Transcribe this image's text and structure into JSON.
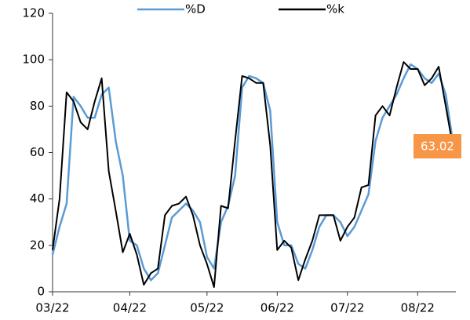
{
  "chart_data": {
    "type": "line",
    "categories": [
      "03/22",
      null,
      null,
      null,
      null,
      null,
      null,
      null,
      null,
      null,
      null,
      "04/22",
      null,
      null,
      null,
      null,
      null,
      null,
      null,
      null,
      null,
      null,
      "05/22",
      null,
      null,
      null,
      null,
      null,
      null,
      null,
      null,
      null,
      "06/22",
      null,
      null,
      null,
      null,
      null,
      null,
      null,
      null,
      null,
      "07/22",
      null,
      null,
      null,
      null,
      null,
      null,
      null,
      null,
      null,
      "08/22",
      null,
      null,
      null,
      null,
      null
    ],
    "series": [
      {
        "name": "%D",
        "color": "#5b9bd5",
        "values": [
          16,
          28,
          38,
          84,
          80,
          75,
          75,
          85,
          88,
          65,
          50,
          22,
          20,
          10,
          5,
          8,
          20,
          32,
          35,
          38,
          35,
          30,
          15,
          10,
          30,
          37,
          50,
          88,
          93,
          92,
          90,
          78,
          30,
          20,
          20,
          12,
          10,
          18,
          28,
          33,
          33,
          30,
          24,
          28,
          35,
          42,
          65,
          75,
          80,
          85,
          92,
          98,
          96,
          92,
          90,
          94,
          85,
          65
        ]
      },
      {
        "name": "%k",
        "color": "#000000",
        "values": [
          18,
          40,
          86,
          82,
          73,
          70,
          82,
          92,
          52,
          35,
          17,
          25,
          16,
          3,
          8,
          10,
          33,
          37,
          38,
          41,
          33,
          20,
          12,
          2,
          37,
          36,
          65,
          93,
          92,
          90,
          90,
          63,
          18,
          22,
          19,
          5,
          14,
          22,
          33,
          33,
          33,
          22,
          28,
          32,
          45,
          46,
          76,
          80,
          76,
          88,
          99,
          96,
          96,
          89,
          92,
          97,
          80,
          63
        ]
      }
    ],
    "annotation": "63.02",
    "annotation_color": "#f79646",
    "ylim": [
      0,
      120
    ],
    "yticks": [
      0,
      20,
      40,
      60,
      80,
      100,
      120
    ],
    "grid": false,
    "legend": "top"
  }
}
